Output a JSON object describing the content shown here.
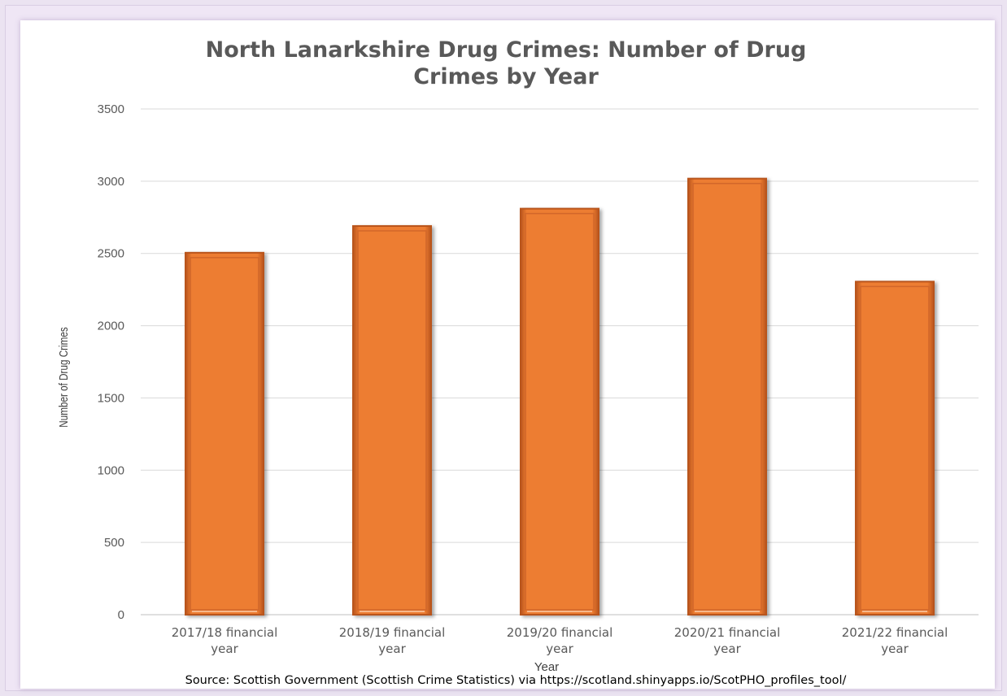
{
  "chart_data": {
    "type": "bar",
    "title": "North Lanarkshire Drug Crimes: Number of  Drug Crimes by Year",
    "title_lines": [
      "North Lanarkshire Drug Crimes: Number of  Drug",
      "Crimes by Year"
    ],
    "categories": [
      "2017/18 financial year",
      "2018/19 financial year",
      "2019/20 financial year",
      "2020/21 financial year",
      "2021/22 financial year"
    ],
    "category_lines": [
      [
        "2017/18 financial",
        "year"
      ],
      [
        "2018/19 financial",
        "year"
      ],
      [
        "2019/20 financial",
        "year"
      ],
      [
        "2020/21 financial",
        "year"
      ],
      [
        "2021/22 financial",
        "year"
      ]
    ],
    "values": [
      2505,
      2690,
      2810,
      3018,
      2305
    ],
    "xlabel": "Year",
    "ylabel": "Number of Drug Crimes",
    "ylim": [
      0,
      3500
    ],
    "yticks": [
      "0",
      "500",
      "1000",
      "1500",
      "2000",
      "2500",
      "3000",
      "3500"
    ],
    "grid": true,
    "legend": "none",
    "source": "Source: Scottish Government (Scottish Crime Statistics) via https://scotland.shinyapps.io/ScotPHO_profiles_tool/",
    "colors": {
      "bar_fill": "#ed7d31",
      "bar_edge": "#b9541d",
      "bar_highlight": "#f7b88a",
      "gridline": "#d9d9d9",
      "text": "#595959"
    }
  }
}
